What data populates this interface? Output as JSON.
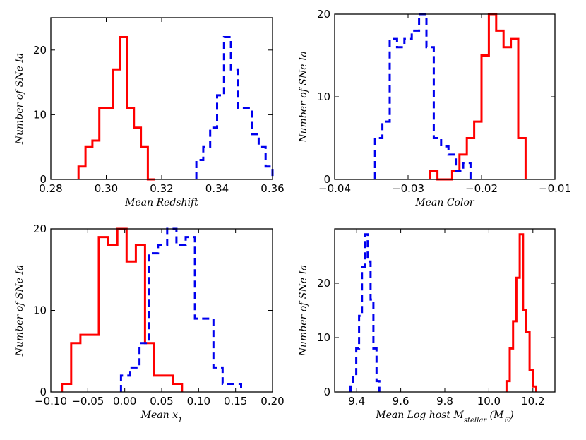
{
  "chart_data": [
    {
      "type": "histogram",
      "xlabel": "Mean Redshift",
      "ylabel": "Number of SNe Ia",
      "xlim": [
        0.28,
        0.36
      ],
      "ylim": [
        0,
        25
      ],
      "xticks": [
        0.28,
        0.3,
        0.32,
        0.34,
        0.36
      ],
      "xtick_labels": [
        "0.28",
        "0.30",
        "0.32",
        "0.34",
        "0.36"
      ],
      "yticks": [
        0,
        10,
        20
      ],
      "ytick_labels": [
        "0",
        "10",
        "20"
      ],
      "series": [
        {
          "name": "red",
          "style": "solid",
          "color": "#ff0000",
          "edges": [
            0.29,
            0.2925,
            0.295,
            0.2975,
            0.3,
            0.3025,
            0.305,
            0.3075,
            0.31,
            0.3125,
            0.315,
            0.3175
          ],
          "counts": [
            2,
            5,
            6,
            11,
            11,
            17,
            22,
            11,
            8,
            5,
            0
          ]
        },
        {
          "name": "blue",
          "style": "dashed",
          "color": "#0000ee",
          "edges": [
            0.3325,
            0.335,
            0.3375,
            0.34,
            0.3425,
            0.345,
            0.3475,
            0.35,
            0.3525,
            0.355,
            0.3575,
            0.36
          ],
          "counts": [
            3,
            5,
            8,
            13,
            22,
            17,
            11,
            11,
            7,
            5,
            2
          ]
        }
      ]
    },
    {
      "type": "histogram",
      "xlabel": "Mean Color",
      "ylabel": "Number of SNe Ia",
      "xlim": [
        -0.04,
        -0.01
      ],
      "ylim": [
        0,
        20
      ],
      "xticks": [
        -0.04,
        -0.03,
        -0.02,
        -0.01
      ],
      "xtick_labels": [
        "−0.04",
        "−0.03",
        "−0.02",
        "−0.01"
      ],
      "yticks": [
        0,
        10,
        20
      ],
      "ytick_labels": [
        "0",
        "10",
        "20"
      ],
      "series": [
        {
          "name": "red",
          "style": "solid",
          "color": "#ff0000",
          "edges": [
            -0.027,
            -0.026,
            -0.025,
            -0.024,
            -0.023,
            -0.022,
            -0.021,
            -0.02,
            -0.019,
            -0.018,
            -0.017,
            -0.016,
            -0.015,
            -0.014
          ],
          "counts": [
            1,
            0,
            0,
            1,
            3,
            5,
            7,
            15,
            20,
            18,
            16,
            17,
            5
          ]
        },
        {
          "name": "blue",
          "style": "dashed",
          "color": "#0000ee",
          "edges": [
            -0.0345,
            -0.0335,
            -0.0325,
            -0.0315,
            -0.0305,
            -0.0295,
            -0.0285,
            -0.0275,
            -0.0265,
            -0.0255,
            -0.0245,
            -0.0235,
            -0.0225,
            -0.0215
          ],
          "counts": [
            5,
            7,
            17,
            16,
            17,
            18,
            20,
            16,
            5,
            4,
            3,
            1,
            2
          ]
        }
      ]
    },
    {
      "type": "histogram",
      "xlabel": "Mean x₁",
      "ylabel": "Number of SNe Ia",
      "xlim": [
        -0.1,
        0.2
      ],
      "ylim": [
        0,
        20
      ],
      "xticks": [
        -0.1,
        -0.05,
        0.0,
        0.05,
        0.1,
        0.15,
        0.2
      ],
      "xtick_labels": [
        "−0.10",
        "−0.05",
        "0.00",
        "0.05",
        "0.10",
        "0.15",
        "0.20"
      ],
      "yticks": [
        0,
        10,
        20
      ],
      "ytick_labels": [
        "0",
        "10",
        "20"
      ],
      "series": [
        {
          "name": "red",
          "style": "solid",
          "color": "#ff0000",
          "edges": [
            -0.085,
            -0.0725,
            -0.06,
            -0.0475,
            -0.035,
            -0.0225,
            -0.01,
            0.0025,
            0.015,
            0.0275,
            0.04,
            0.0525,
            0.065,
            0.0775
          ],
          "counts": [
            1,
            6,
            7,
            7,
            19,
            18,
            20,
            16,
            18,
            6,
            2,
            2,
            1
          ]
        },
        {
          "name": "blue",
          "style": "dashed",
          "color": "#0000ee",
          "edges": [
            -0.005,
            0.0075,
            0.02,
            0.0325,
            0.045,
            0.0575,
            0.07,
            0.0825,
            0.095,
            0.1075,
            0.12,
            0.1325,
            0.145,
            0.1575
          ],
          "counts": [
            2,
            3,
            6,
            17,
            18,
            20,
            18,
            19,
            9,
            9,
            3,
            1,
            1
          ]
        }
      ]
    },
    {
      "type": "histogram",
      "xlabel": "Mean Log host M_stellar (M_☉)",
      "ylabel": "Number of SNe Ia",
      "xlim": [
        9.3,
        10.3
      ],
      "ylim": [
        0,
        30
      ],
      "xticks": [
        9.4,
        9.6,
        9.8,
        10.0,
        10.2
      ],
      "xtick_labels": [
        "9.4",
        "9.6",
        "9.8",
        "10.0",
        "10.2"
      ],
      "yticks": [
        0,
        10,
        20
      ],
      "ytick_labels": [
        "0",
        "10",
        "20"
      ],
      "series": [
        {
          "name": "red",
          "style": "solid",
          "color": "#ff0000",
          "edges": [
            10.08,
            10.095,
            10.11,
            10.125,
            10.14,
            10.155,
            10.17,
            10.185,
            10.2,
            10.215
          ],
          "counts": [
            2,
            8,
            13,
            21,
            29,
            15,
            11,
            4,
            1,
            0
          ]
        },
        {
          "name": "blue",
          "style": "dashed",
          "color": "#0000ee",
          "edges": [
            9.372,
            9.385,
            9.398,
            9.411,
            9.424,
            9.437,
            9.45,
            9.463,
            9.476,
            9.49,
            9.503
          ],
          "counts": [
            1,
            3,
            8,
            14,
            23,
            29,
            24,
            17,
            8,
            2
          ]
        }
      ]
    }
  ]
}
